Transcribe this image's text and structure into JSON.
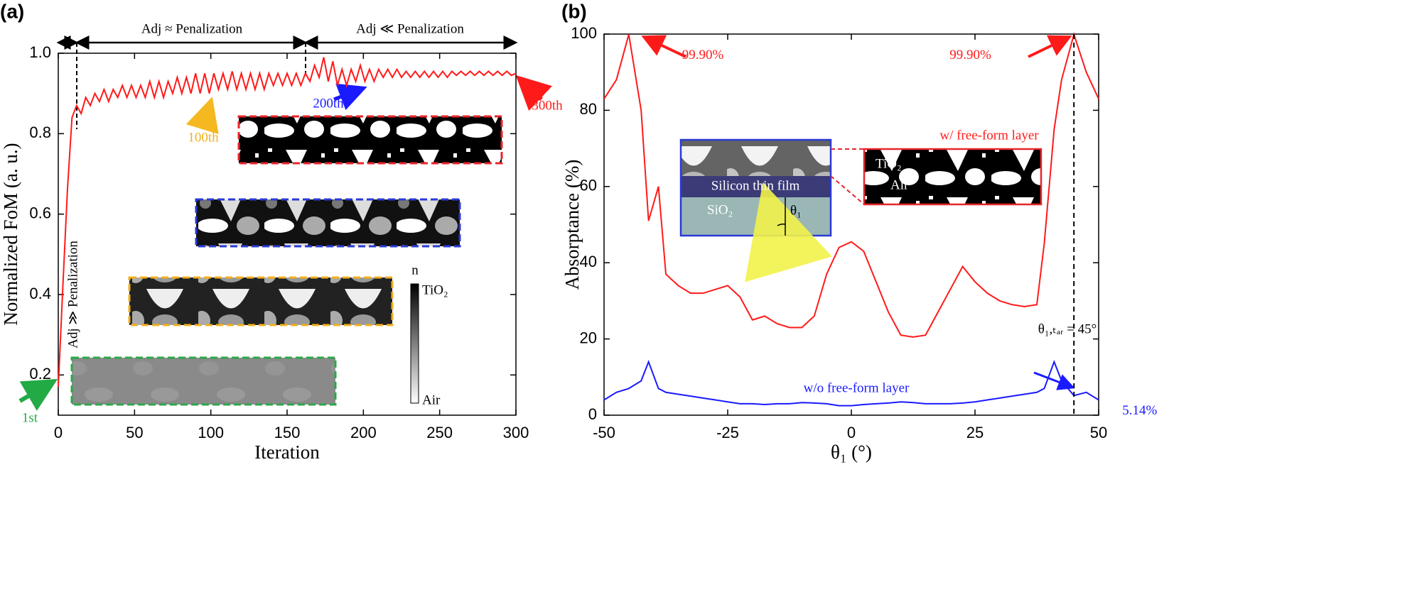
{
  "chart_data": [
    {
      "type": "line",
      "panel_label": "(a)",
      "x_label": "Iteration",
      "y_label": "Normalized  FoM (a. u.)",
      "color": "#ff1a1a",
      "x": [
        0,
        3,
        6,
        9,
        12,
        15,
        18,
        21,
        24,
        27,
        30,
        33,
        36,
        39,
        42,
        45,
        48,
        51,
        54,
        57,
        60,
        63,
        66,
        69,
        72,
        75,
        78,
        81,
        84,
        87,
        90,
        93,
        96,
        99,
        102,
        105,
        108,
        111,
        114,
        117,
        120,
        123,
        126,
        129,
        132,
        135,
        138,
        141,
        144,
        147,
        150,
        153,
        156,
        159,
        162,
        165,
        168,
        171,
        174,
        177,
        180,
        183,
        186,
        189,
        192,
        195,
        198,
        201,
        204,
        207,
        210,
        213,
        216,
        219,
        222,
        225,
        228,
        231,
        234,
        237,
        240,
        243,
        246,
        249,
        252,
        255,
        258,
        261,
        264,
        267,
        270,
        273,
        276,
        279,
        282,
        285,
        288,
        291,
        294,
        297,
        300
      ],
      "values": [
        0.17,
        0.42,
        0.66,
        0.84,
        0.87,
        0.85,
        0.89,
        0.87,
        0.9,
        0.88,
        0.91,
        0.88,
        0.91,
        0.89,
        0.92,
        0.89,
        0.92,
        0.89,
        0.92,
        0.89,
        0.93,
        0.89,
        0.93,
        0.89,
        0.93,
        0.9,
        0.94,
        0.9,
        0.94,
        0.9,
        0.95,
        0.9,
        0.95,
        0.9,
        0.95,
        0.91,
        0.95,
        0.91,
        0.955,
        0.91,
        0.95,
        0.91,
        0.95,
        0.91,
        0.95,
        0.91,
        0.95,
        0.92,
        0.95,
        0.92,
        0.95,
        0.92,
        0.95,
        0.92,
        0.95,
        0.93,
        0.97,
        0.94,
        0.99,
        0.93,
        0.98,
        0.92,
        0.96,
        0.92,
        0.96,
        0.93,
        0.97,
        0.93,
        0.96,
        0.93,
        0.96,
        0.94,
        0.96,
        0.94,
        0.96,
        0.94,
        0.955,
        0.94,
        0.955,
        0.94,
        0.955,
        0.94,
        0.955,
        0.94,
        0.955,
        0.94,
        0.955,
        0.945,
        0.955,
        0.945,
        0.955,
        0.945,
        0.955,
        0.945,
        0.955,
        0.945,
        0.955,
        0.945,
        0.955,
        0.945,
        0.95
      ],
      "xlim": [
        0,
        300
      ],
      "xticks": [
        0,
        50,
        100,
        150,
        200,
        250,
        300
      ],
      "ylim": [
        0.1,
        1.0
      ],
      "yticks": [
        0.2,
        0.4,
        0.6,
        0.8,
        {
          "value": 1,
          "label": "1.0"
        }
      ],
      "annotations": {
        "phase1": "Adj ≫ Penalization",
        "phase2": "Adj ≈ Penalization",
        "phase3": "Adj ≪ Penalization",
        "first": "1st",
        "it100": "100th",
        "it200": "200th",
        "it300": "300th",
        "colorbar_title": "n",
        "colorbar_top": "TiO₂",
        "colorbar_bottom": "Air"
      }
    },
    {
      "type": "line",
      "panel_label": "(b)",
      "x_label": "θ₁ (°)",
      "y_label": "Absorptance (%)",
      "x": [
        -50,
        -47.5,
        -45,
        -42.5,
        -41,
        -39,
        -37.5,
        -35,
        -32.5,
        -30,
        -27.5,
        -25,
        -22.5,
        -20,
        -17.5,
        -15,
        -12.5,
        -10,
        -7.5,
        -5,
        -2.5,
        0,
        2.5,
        5,
        7.5,
        10,
        12.5,
        15,
        17.5,
        20,
        22.5,
        25,
        27.5,
        30,
        32.5,
        35,
        37.5,
        39,
        41,
        42.5,
        45,
        47.5,
        50
      ],
      "series": [
        {
          "name": "w/  free-form layer",
          "color": "#ff1a1a",
          "values": [
            83,
            88,
            99.9,
            80,
            51,
            60,
            37,
            34,
            32,
            32,
            33,
            34,
            31,
            25,
            26,
            24,
            23,
            23,
            26,
            37,
            44,
            45.5,
            43,
            35,
            27,
            21,
            20.5,
            21,
            27,
            33,
            39,
            35,
            32,
            30,
            29,
            28.5,
            29,
            45,
            75,
            88,
            99.9,
            90,
            83
          ],
          "value_labels": [
            null,
            null,
            "99.90%",
            null,
            null,
            null,
            null,
            null,
            null,
            null,
            null,
            null,
            null,
            null,
            null,
            null,
            null,
            null,
            null,
            null,
            null,
            null,
            null,
            null,
            null,
            null,
            null,
            null,
            null,
            null,
            null,
            null,
            null,
            null,
            null,
            null,
            null,
            null,
            null,
            null,
            "99.90%",
            null,
            null
          ]
        },
        {
          "name": "w/o  free-form layer",
          "color": "#1a1aff",
          "values": [
            4,
            6,
            7,
            9,
            14,
            7,
            6,
            5.5,
            5,
            4.5,
            4,
            3.5,
            3,
            3,
            2.8,
            3,
            3,
            3.3,
            3.2,
            3,
            2.5,
            2.5,
            2.8,
            3,
            3.2,
            3.5,
            3.3,
            3,
            3,
            3,
            3.2,
            3.5,
            4,
            4.5,
            5,
            5.5,
            6,
            7,
            14,
            9,
            5.14,
            6,
            4
          ],
          "value_labels": [
            null,
            null,
            null,
            null,
            null,
            null,
            null,
            null,
            null,
            null,
            null,
            null,
            null,
            null,
            null,
            null,
            null,
            null,
            null,
            null,
            null,
            null,
            null,
            null,
            null,
            null,
            null,
            null,
            null,
            null,
            null,
            null,
            null,
            null,
            null,
            null,
            null,
            null,
            null,
            null,
            "5.14%",
            null,
            null
          ]
        }
      ],
      "xlim": [
        -50,
        50
      ],
      "xticks": [
        -50,
        -25,
        0,
        25,
        50
      ],
      "ylim": [
        0,
        100
      ],
      "yticks": [
        0,
        20,
        40,
        60,
        80,
        100
      ],
      "marker_line": {
        "value": 45,
        "label": "θ₁,ₜₐᵣ = 45°"
      },
      "inset": {
        "film": "Silicon thin film",
        "substrate": "SiO₂",
        "angle": "θ₁",
        "material": "TiO₂",
        "air": "Air"
      }
    }
  ]
}
